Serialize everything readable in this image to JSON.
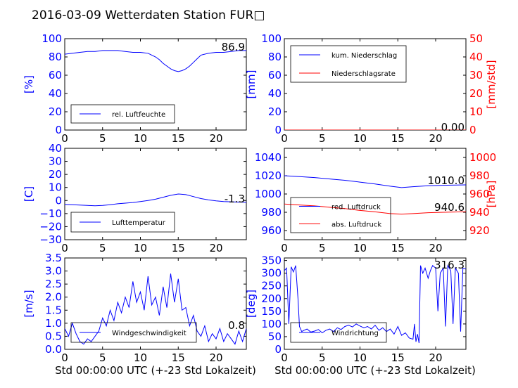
{
  "title": "2016-03-09 Wetterdaten Station FUR□",
  "colors": {
    "blue": "#0000ff",
    "red": "#ff0000",
    "axis": "#000000"
  },
  "chart_data": [
    {
      "id": "humidity",
      "type": "line",
      "xlabel": "",
      "ylabel": "[%]",
      "ylim": [
        0,
        100
      ],
      "xlim": [
        0,
        24
      ],
      "yticks": [
        "0",
        "20",
        "40",
        "60",
        "80",
        "100"
      ],
      "xticks": [
        "0",
        "5",
        "10",
        "15",
        "20"
      ],
      "legend": [
        "rel. Luftfeuchte"
      ],
      "legend_position": "lower-left",
      "current_value": "86.9",
      "series": [
        {
          "name": "rel. Luftfeuchte",
          "color": "#0000ff",
          "x": [
            0,
            1,
            2,
            3,
            4,
            5,
            6,
            7,
            8,
            9,
            10,
            11,
            12,
            12.5,
            13,
            13.5,
            14,
            14.5,
            15,
            15.5,
            16,
            16.5,
            17,
            17.5,
            18,
            19,
            20,
            21,
            22,
            23,
            24
          ],
          "y": [
            83,
            84,
            85,
            86,
            86,
            87,
            87,
            87,
            86,
            85,
            85,
            84,
            80,
            77,
            73,
            70,
            67,
            65,
            64,
            65,
            67,
            70,
            74,
            78,
            82,
            84,
            85,
            85,
            86,
            87,
            87
          ]
        }
      ]
    },
    {
      "id": "precip",
      "type": "line",
      "xlabel": "",
      "ylabel": "[mm]",
      "ylabel_right": "[mm/std]",
      "ylim": [
        0,
        100
      ],
      "ylim_right": [
        0,
        50
      ],
      "xlim": [
        0,
        24
      ],
      "yticks": [
        "0",
        "20",
        "40",
        "60",
        "80",
        "100"
      ],
      "yticks_right": [
        "0",
        "10",
        "20",
        "30",
        "40",
        "50"
      ],
      "xticks": [
        "0",
        "5",
        "10",
        "15",
        "20"
      ],
      "legend": [
        "kum. Niederschlag",
        "Niederschlagsrate"
      ],
      "legend_position": "upper-left",
      "current_value": "0.00",
      "series": [
        {
          "name": "kum. Niederschlag",
          "color": "#0000ff",
          "x": [
            0,
            24
          ],
          "y": [
            0,
            0
          ]
        },
        {
          "name": "Niederschlagsrate",
          "color": "#ff0000",
          "x": [
            0,
            24
          ],
          "y": [
            0,
            0
          ]
        }
      ]
    },
    {
      "id": "temperature",
      "type": "line",
      "xlabel": "",
      "ylabel": "[C]",
      "ylim": [
        -30,
        40
      ],
      "xlim": [
        0,
        24
      ],
      "yticks": [
        "−30",
        "−20",
        "−10",
        "0",
        "10",
        "20",
        "30",
        "40"
      ],
      "xticks": [
        "0",
        "5",
        "10",
        "15",
        "20"
      ],
      "legend": [
        "Lufttemperatur"
      ],
      "legend_position": "lower-left",
      "current_value": "-1.3",
      "series": [
        {
          "name": "Lufttemperatur",
          "color": "#0000ff",
          "x": [
            0,
            1,
            2,
            3,
            4,
            5,
            6,
            7,
            8,
            9,
            10,
            11,
            12,
            13,
            14,
            15,
            16,
            17,
            18,
            19,
            20,
            21,
            22,
            23,
            24
          ],
          "y": [
            -3,
            -3.2,
            -3.5,
            -3.8,
            -4,
            -3.8,
            -3.2,
            -2.5,
            -2,
            -1.5,
            -0.8,
            0,
            1,
            2.5,
            4,
            5,
            4.5,
            3,
            1.5,
            0.5,
            -0.3,
            -0.8,
            -1,
            -1.2,
            -1.3
          ]
        }
      ]
    },
    {
      "id": "pressure",
      "type": "line",
      "xlabel": "",
      "ylabel": "",
      "ylabel_right": "[hPa]",
      "ylim": [
        950,
        1050
      ],
      "ylim_right": [
        910,
        1010
      ],
      "xlim": [
        0,
        24
      ],
      "yticks": [
        "960",
        "980",
        "1000",
        "1020",
        "1040"
      ],
      "yticks_right": [
        "920",
        "940",
        "960",
        "980",
        "1000"
      ],
      "xticks": [
        "0",
        "5",
        "10",
        "15",
        "20"
      ],
      "legend": [
        "red. Luftdruck",
        "abs. Luftdruck"
      ],
      "legend_position": "lower-left",
      "current_value": "1010.0",
      "current_value_2": "940.6",
      "series": [
        {
          "name": "red. Luftdruck",
          "color": "#0000ff",
          "x": [
            0,
            2,
            4,
            6,
            8,
            10,
            12,
            14,
            15.5,
            17,
            19,
            21,
            24
          ],
          "y": [
            1020,
            1019,
            1018,
            1016.5,
            1015,
            1013,
            1011,
            1008.5,
            1007,
            1008,
            1009,
            1009.5,
            1010
          ]
        },
        {
          "name": "abs. Luftdruck",
          "color": "#ff0000",
          "x": [
            0,
            2,
            4,
            6,
            8,
            10,
            12,
            14,
            15.5,
            17,
            19,
            21,
            24
          ],
          "y": [
            949,
            948,
            947,
            945.5,
            944,
            942,
            940.5,
            938.5,
            938,
            938.5,
            939.5,
            940,
            940.6
          ]
        }
      ]
    },
    {
      "id": "wind",
      "type": "line",
      "xlabel": "Std 00:00:00 UTC (+-23 Std Lokalzeit)",
      "ylabel": "[m/s]",
      "ylim": [
        0,
        3.5
      ],
      "xlim": [
        0,
        24
      ],
      "yticks": [
        "0.0",
        "0.5",
        "1.0",
        "1.5",
        "2.0",
        "2.5",
        "3.0",
        "3.5"
      ],
      "xticks": [
        "0",
        "5",
        "10",
        "15",
        "20"
      ],
      "legend": [
        "Windgeschwindigkeit"
      ],
      "legend_position": "lower-left",
      "current_value": "0.8",
      "series": [
        {
          "name": "Windgeschwindigkeit",
          "color": "#0000ff",
          "x": [
            0,
            0.5,
            1,
            1.5,
            2,
            2.5,
            3,
            3.5,
            4,
            4.5,
            5,
            5.5,
            6,
            6.5,
            7,
            7.5,
            8,
            8.5,
            9,
            9.5,
            10,
            10.5,
            11,
            11.5,
            12,
            12.5,
            13,
            13.5,
            14,
            14.5,
            15,
            15.5,
            16,
            16.5,
            17,
            17.5,
            18,
            18.5,
            19,
            19.5,
            20,
            20.5,
            21,
            21.5,
            22,
            22.5,
            23,
            23.5,
            24
          ],
          "y": [
            0.8,
            0.5,
            1.0,
            0.6,
            0.3,
            0.2,
            0.4,
            0.3,
            0.5,
            0.7,
            1.2,
            0.9,
            1.5,
            1.1,
            1.8,
            1.4,
            2.0,
            1.6,
            2.6,
            1.8,
            2.2,
            1.5,
            2.8,
            1.7,
            2.0,
            1.3,
            2.4,
            1.6,
            2.9,
            1.8,
            2.7,
            1.5,
            1.6,
            0.9,
            1.3,
            0.7,
            0.5,
            0.9,
            0.3,
            0.6,
            0.4,
            0.8,
            0.3,
            0.6,
            0.4,
            0.2,
            0.7,
            0.3,
            0.8
          ]
        }
      ]
    },
    {
      "id": "winddir",
      "type": "line",
      "xlabel": "Std 00:00:00 UTC (+-23 Std Lokalzeit)",
      "ylabel": "[deg]",
      "ylim": [
        0,
        360
      ],
      "xlim": [
        0,
        24
      ],
      "yticks": [
        "0",
        "50",
        "100",
        "150",
        "200",
        "250",
        "300",
        "350"
      ],
      "xticks": [
        "0",
        "5",
        "10",
        "15",
        "20"
      ],
      "legend": [
        "Windrichtung"
      ],
      "legend_position": "lower-left",
      "current_value": "316.3",
      "series": [
        {
          "name": "Windrichtung",
          "color": "#0000ff",
          "x": [
            0,
            0.3,
            0.6,
            0.9,
            1.2,
            1.5,
            1.8,
            2.0,
            2.3,
            2.6,
            3,
            3.5,
            4,
            4.5,
            5,
            5.5,
            6,
            6.5,
            7,
            7.5,
            8,
            8.5,
            9,
            9.5,
            10,
            10.5,
            11,
            11.5,
            12,
            12.5,
            13,
            13.5,
            14,
            14.5,
            15,
            15.5,
            16,
            16.5,
            17,
            17.2,
            17.4,
            17.6,
            17.8,
            18,
            18.3,
            18.6,
            19,
            19.3,
            19.6,
            20,
            20.3,
            20.6,
            21,
            21.3,
            21.6,
            22,
            22.3,
            22.6,
            23,
            23.3,
            23.6,
            24
          ],
          "y": [
            310,
            320,
            100,
            325,
            305,
            330,
            200,
            90,
            70,
            75,
            80,
            68,
            72,
            78,
            65,
            75,
            80,
            70,
            85,
            78,
            90,
            95,
            88,
            100,
            92,
            85,
            90,
            80,
            95,
            75,
            85,
            70,
            80,
            60,
            90,
            55,
            65,
            45,
            40,
            100,
            30,
            60,
            25,
            330,
            300,
            320,
            280,
            310,
            330,
            320,
            150,
            300,
            320,
            90,
            330,
            310,
            100,
            320,
            300,
            70,
            320,
            316
          ]
        }
      ]
    }
  ]
}
